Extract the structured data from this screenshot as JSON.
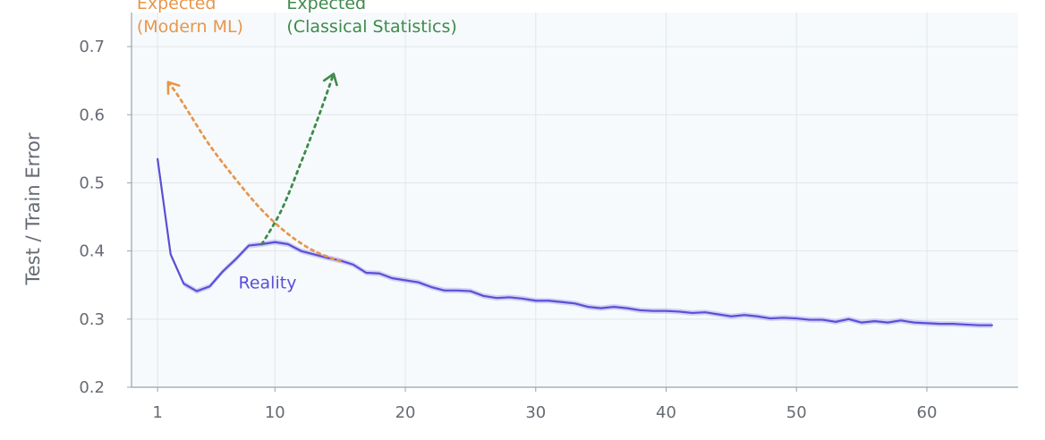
{
  "chart_data": {
    "type": "line",
    "title": "",
    "xlabel": "",
    "ylabel": "Test / Train Error",
    "xlim": [
      -1,
      67
    ],
    "ylim": [
      0.2,
      0.75
    ],
    "x_ticks": [
      1,
      10,
      20,
      30,
      40,
      50,
      60
    ],
    "y_ticks": [
      0.2,
      0.3,
      0.4,
      0.5,
      0.6,
      0.7
    ],
    "grid": true,
    "legend": "none",
    "series": [
      {
        "name": "Reality",
        "color": "#5b4fd6",
        "band_color": "#b5aef0",
        "x": [
          1,
          2,
          3,
          4,
          5,
          6,
          7,
          8,
          9,
          10,
          11,
          12,
          13,
          14,
          15,
          16,
          17,
          18,
          19,
          20,
          21,
          22,
          23,
          24,
          25,
          26,
          27,
          28,
          29,
          30,
          31,
          32,
          33,
          34,
          35,
          36,
          37,
          38,
          39,
          40,
          41,
          42,
          43,
          44,
          45,
          46,
          47,
          48,
          49,
          50,
          51,
          52,
          53,
          54,
          55,
          56,
          57,
          58,
          59,
          60,
          61,
          62,
          63,
          64,
          65
        ],
        "y": [
          0.535,
          0.395,
          0.352,
          0.341,
          0.348,
          0.37,
          0.388,
          0.408,
          0.41,
          0.413,
          0.41,
          0.4,
          0.395,
          0.39,
          0.386,
          0.38,
          0.368,
          0.367,
          0.36,
          0.357,
          0.354,
          0.347,
          0.342,
          0.342,
          0.341,
          0.334,
          0.331,
          0.332,
          0.33,
          0.327,
          0.327,
          0.325,
          0.323,
          0.318,
          0.316,
          0.318,
          0.316,
          0.313,
          0.312,
          0.312,
          0.311,
          0.309,
          0.31,
          0.307,
          0.304,
          0.306,
          0.304,
          0.301,
          0.302,
          0.301,
          0.299,
          0.299,
          0.296,
          0.3,
          0.295,
          0.297,
          0.295,
          0.298,
          0.295,
          0.294,
          0.293,
          0.293,
          0.292,
          0.291,
          0.291
        ],
        "band": 0.004
      },
      {
        "name": "Expected (Modern ML)",
        "color": "#e8964b",
        "style": "dotted",
        "x": [
          15,
          13,
          11,
          9,
          7,
          5,
          3.5,
          2.5,
          1.8
        ],
        "y": [
          0.385,
          0.4,
          0.425,
          0.46,
          0.505,
          0.555,
          0.6,
          0.63,
          0.648
        ],
        "arrow": "end"
      },
      {
        "name": "Expected (Classical Statistics)",
        "color": "#3f8a4b",
        "style": "dotted",
        "x": [
          9,
          10.5,
          12,
          13.3,
          14.5
        ],
        "y": [
          0.41,
          0.46,
          0.53,
          0.595,
          0.66
        ],
        "arrow": "end"
      }
    ],
    "annotations": [
      {
        "lines": [
          "Expected",
          "(Modern ML)"
        ],
        "color": "#e8964b",
        "anchor_x": -0.6,
        "anchor_y": 0.755
      },
      {
        "lines": [
          "Expected",
          "(Classical Statistics)"
        ],
        "color": "#3f8a4b",
        "anchor_x": 10.9,
        "anchor_y": 0.755
      },
      {
        "lines": [
          "Reality"
        ],
        "color": "#5b4fd6",
        "anchor_x": 7.2,
        "anchor_y": 0.345
      }
    ],
    "colors": {
      "plot_bg": "#f6fafc",
      "grid": "#e1e6ea",
      "axis": "#9aa1a8"
    }
  }
}
